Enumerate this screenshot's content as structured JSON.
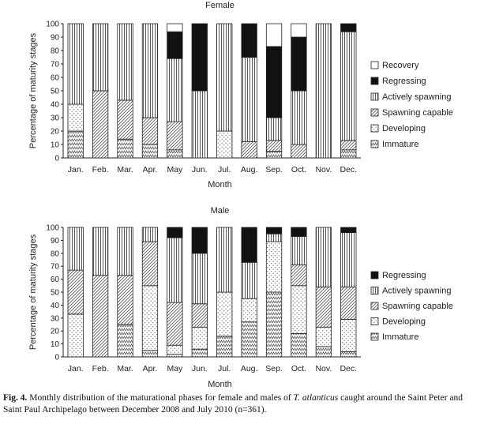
{
  "figure": {
    "caption_label": "Fig. 4.",
    "caption_text_1": " Monthly distribution of the maturational phases for female and males of ",
    "caption_species": "T. atlanticus",
    "caption_text_2": " caught around the Saint Peter and Saint Paul Archipelago between December 2008 and July 2010 (n=361)."
  },
  "chart_data": [
    {
      "type": "bar",
      "stacked": true,
      "title": "Female",
      "xlabel": "Month",
      "ylabel": "Percentage of maturity stages",
      "ylim": [
        0,
        100
      ],
      "yticks": [
        0,
        10,
        20,
        30,
        40,
        50,
        60,
        70,
        80,
        90,
        100
      ],
      "grid": false,
      "legend_position": "right",
      "categories": [
        "Jan.",
        "Feb.",
        "Mar.",
        "Apr.",
        "May",
        "Jun.",
        "Jul.",
        "Aug.",
        "Sep.",
        "Oct.",
        "Nov.",
        "Dec."
      ],
      "series": [
        {
          "name": "Immature",
          "pattern": "zigzag",
          "values": [
            20,
            0,
            14,
            10,
            6,
            0,
            0,
            0,
            5,
            0,
            0,
            6
          ]
        },
        {
          "name": "Developing",
          "pattern": "dots",
          "values": [
            20,
            0,
            0,
            0,
            0,
            0,
            20,
            0,
            0,
            0,
            0,
            0
          ]
        },
        {
          "name": "Spawning capable",
          "pattern": "diagonal",
          "values": [
            0,
            50,
            29,
            20,
            21,
            0,
            0,
            12,
            8,
            10,
            0,
            7
          ]
        },
        {
          "name": "Actively spawning",
          "pattern": "vertical",
          "values": [
            60,
            50,
            57,
            70,
            47,
            50,
            80,
            63,
            17,
            40,
            100,
            81
          ]
        },
        {
          "name": "Regressing",
          "pattern": "black",
          "values": [
            0,
            0,
            0,
            0,
            20,
            50,
            0,
            25,
            53,
            40,
            0,
            6
          ]
        },
        {
          "name": "Recovery",
          "pattern": "white",
          "values": [
            0,
            0,
            0,
            0,
            6,
            0,
            0,
            0,
            17,
            10,
            0,
            0
          ]
        }
      ]
    },
    {
      "type": "bar",
      "stacked": true,
      "title": "Male",
      "xlabel": "Month",
      "ylabel": "Percentage of maturity stages",
      "ylim": [
        0,
        100
      ],
      "yticks": [
        0,
        10,
        20,
        30,
        40,
        50,
        60,
        70,
        80,
        90,
        100
      ],
      "grid": false,
      "legend_position": "right",
      "categories": [
        "Jan.",
        "Feb.",
        "Mar.",
        "Apr.",
        "May",
        "Jun.",
        "Jul.",
        "Aug.",
        "Sep.",
        "Oct.",
        "Nov.",
        "Dec."
      ],
      "series": [
        {
          "name": "Immature",
          "pattern": "zigzag",
          "values": [
            0,
            0,
            25,
            5,
            2,
            6,
            16,
            27,
            50,
            18,
            8,
            4
          ]
        },
        {
          "name": "Developing",
          "pattern": "dots",
          "values": [
            33,
            0,
            0,
            50,
            7,
            17,
            34,
            18,
            39,
            37,
            15,
            25
          ]
        },
        {
          "name": "Spawning capable",
          "pattern": "diagonal",
          "values": [
            34,
            63,
            38,
            34,
            33,
            18,
            0,
            0,
            0,
            16,
            31,
            25
          ]
        },
        {
          "name": "Actively spawning",
          "pattern": "vertical",
          "values": [
            33,
            37,
            37,
            11,
            50,
            39,
            50,
            28,
            6,
            22,
            46,
            42
          ]
        },
        {
          "name": "Regressing",
          "pattern": "black",
          "values": [
            0,
            0,
            0,
            0,
            8,
            20,
            0,
            27,
            5,
            7,
            0,
            4
          ]
        }
      ]
    }
  ]
}
